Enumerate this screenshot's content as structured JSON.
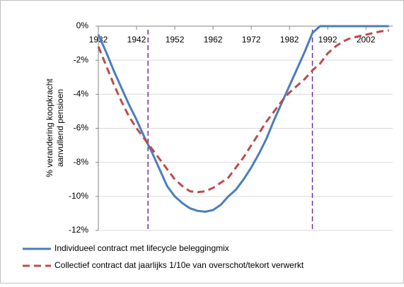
{
  "chart_data": {
    "type": "line",
    "ylabel": [
      "% verandering koopkracht",
      "aanvullend pensioen"
    ],
    "x": [
      1932,
      1934,
      1936,
      1938,
      1940,
      1942,
      1944,
      1946,
      1948,
      1950,
      1952,
      1954,
      1956,
      1958,
      1960,
      1962,
      1964,
      1966,
      1968,
      1970,
      1972,
      1974,
      1976,
      1978,
      1980,
      1982,
      1984,
      1986,
      1988,
      1990,
      1992,
      1994,
      1996,
      1998,
      2000,
      2002,
      2004,
      2006,
      2008
    ],
    "series": [
      {
        "name": "Individueel contract met lifecycle beleggingmix",
        "color": "#4a7ebb",
        "dash": false,
        "values": [
          -0.5,
          -1.5,
          -2.6,
          -3.6,
          -4.6,
          -5.5,
          -6.5,
          -7.4,
          -8.4,
          -9.4,
          -10.0,
          -10.4,
          -10.7,
          -10.85,
          -10.9,
          -10.8,
          -10.5,
          -10.0,
          -9.6,
          -9.0,
          -8.3,
          -7.5,
          -6.6,
          -5.5,
          -4.5,
          -3.5,
          -2.5,
          -1.5,
          -0.4,
          0,
          0,
          0,
          0,
          0,
          0,
          0,
          0,
          0,
          0
        ]
      },
      {
        "name": "Collectief contract dat jaarlijks 1/10e van overschot/tekort verwerkt",
        "color": "#be4b48",
        "dash": true,
        "values": [
          -1.2,
          -2.3,
          -3.4,
          -4.4,
          -5.3,
          -6.0,
          -6.6,
          -7.2,
          -7.8,
          -8.4,
          -9.0,
          -9.4,
          -9.7,
          -9.75,
          -9.7,
          -9.5,
          -9.2,
          -8.9,
          -8.3,
          -7.7,
          -7.0,
          -6.3,
          -5.6,
          -5.0,
          -4.4,
          -3.9,
          -3.5,
          -3.1,
          -2.6,
          -2.2,
          -1.6,
          -1.2,
          -0.9,
          -0.7,
          -0.6,
          -0.5,
          -0.4,
          -0.3,
          -0.25
        ]
      }
    ],
    "vlines": [
      1945,
      1988
    ],
    "vline_color": "#7030a0",
    "xlim": [
      1932,
      2009
    ],
    "xticks": [
      1932,
      1942,
      1952,
      1962,
      1972,
      1982,
      1992,
      2002
    ],
    "ylim": [
      -12,
      0
    ],
    "yticks": [
      {
        "value": 0,
        "label": "0%"
      },
      {
        "value": -2,
        "label": "-2%"
      },
      {
        "value": -4,
        "label": "-4%"
      },
      {
        "value": -6,
        "label": "-6%"
      },
      {
        "value": -8,
        "label": "-8%"
      },
      {
        "value": -10,
        "label": "-10%"
      },
      {
        "value": -12,
        "label": "-12%"
      }
    ],
    "grid": true,
    "legend": "bottom"
  }
}
